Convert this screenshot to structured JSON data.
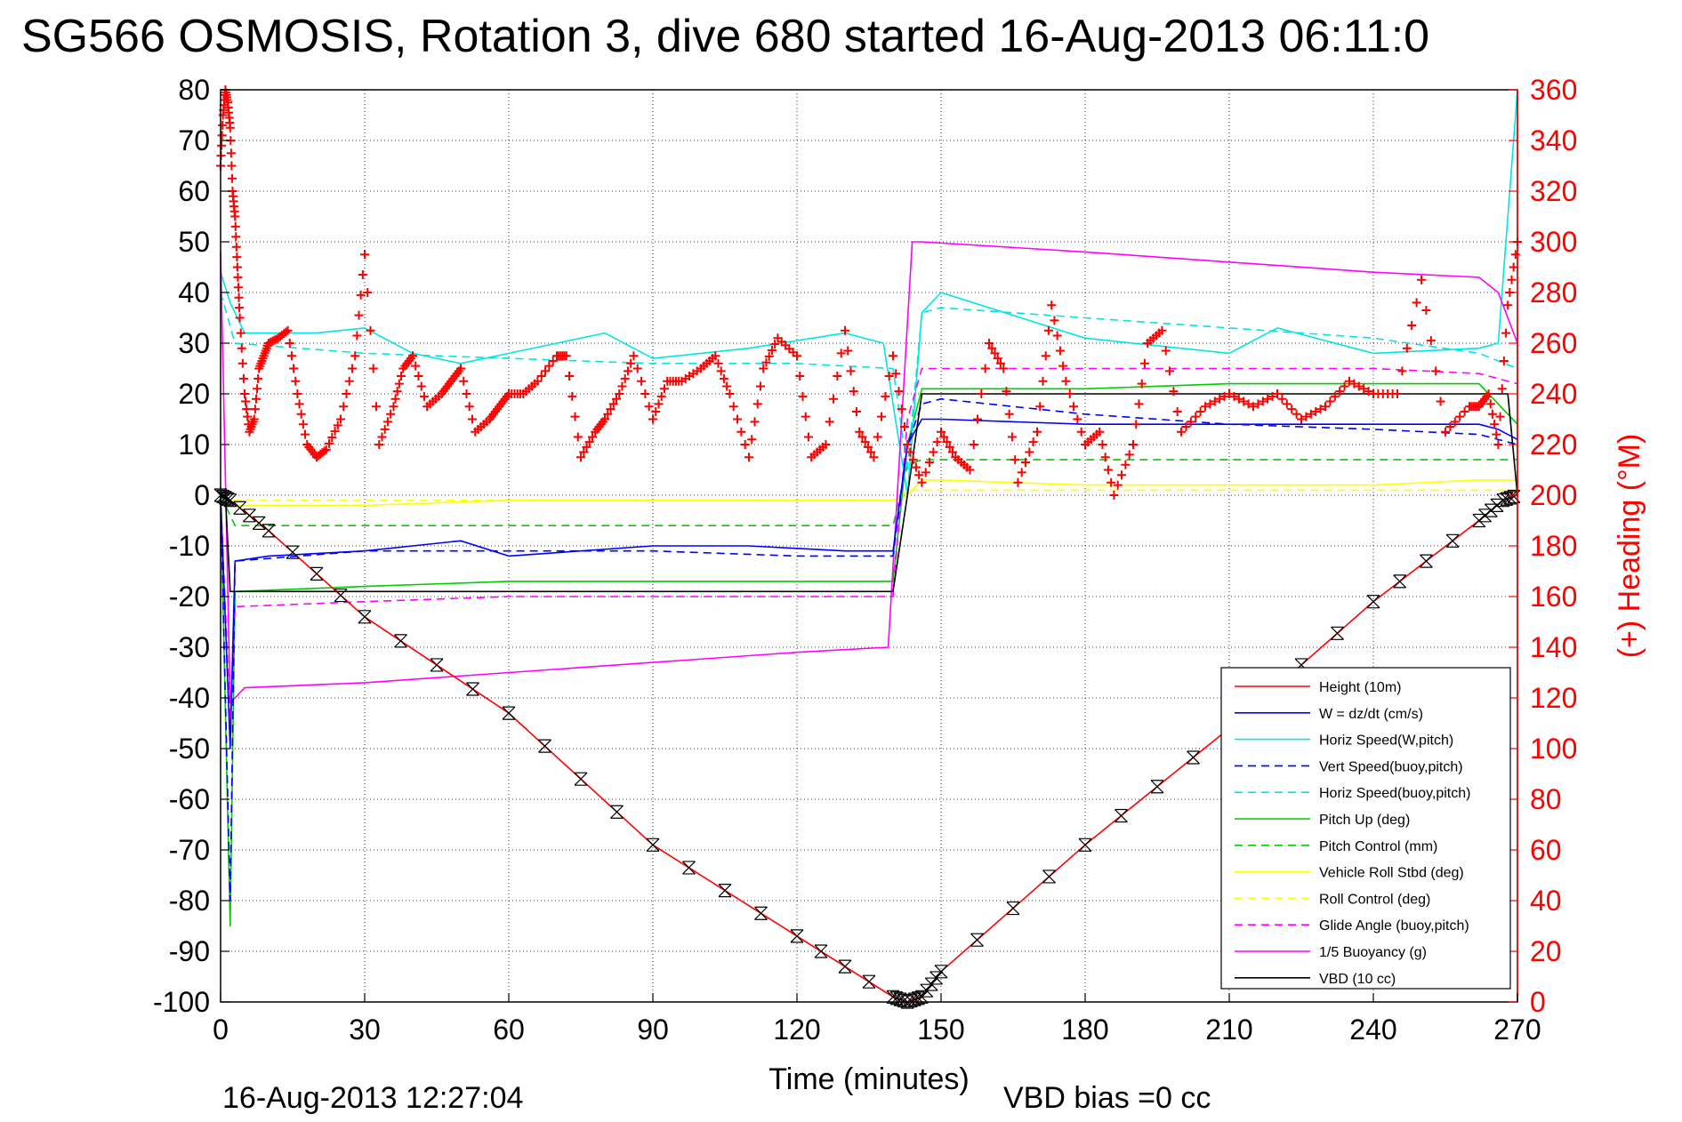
{
  "chart_data": {
    "type": "line",
    "title": "SG566 OSMOSIS, Rotation 3, dive 680 started 16-Aug-2013 06:11:0",
    "xlabel": "Time (minutes)",
    "ylabel": "",
    "y2label": "(+) Heading (°M)",
    "xlim": [
      0,
      270
    ],
    "ylim": [
      -100,
      80
    ],
    "y2lim": [
      0,
      360
    ],
    "xticks": [
      "0",
      "30",
      "60",
      "90",
      "120",
      "150",
      "180",
      "210",
      "240",
      "270"
    ],
    "yticks": [
      "80",
      "70",
      "60",
      "50",
      "40",
      "30",
      "20",
      "10",
      "0",
      "-10",
      "-20",
      "-30",
      "-40",
      "-50",
      "-60",
      "-70",
      "-80",
      "-90",
      "-100"
    ],
    "y2ticks": [
      "360",
      "340",
      "320",
      "300",
      "280",
      "260",
      "240",
      "220",
      "200",
      "180",
      "160",
      "140",
      "120",
      "100",
      "80",
      "60",
      "40",
      "20",
      "0"
    ],
    "grid": true,
    "legend_position": "bottom-right",
    "footer_date": "16-Aug-2013 12:27:04",
    "footer_bias": "VBD bias =0 cc",
    "colors": {
      "height": "#ff0000",
      "w": "#0000ff",
      "horiz": "#00e5e5",
      "pitch": "#00cc00",
      "roll": "#ffff00",
      "glide": "#ff00ff",
      "vbd": "#000000",
      "heading": "#ff0000"
    },
    "series": [
      {
        "name": "Height (10m)",
        "color": "#ff0000",
        "dash": false,
        "x": [
          0,
          2,
          10,
          30,
          60,
          90,
          120,
          140,
          143,
          146,
          150,
          180,
          210,
          240,
          262,
          267,
          270
        ],
        "y": [
          0,
          -1,
          -7,
          -24,
          -43,
          -69,
          -87,
          -99,
          -100,
          -99,
          -94,
          -69,
          -46,
          -21,
          -5,
          -1,
          0
        ]
      },
      {
        "name": "W = dz/dt (cm/s)",
        "color": "#0000ff",
        "dash": false,
        "x": [
          0,
          2,
          3,
          10,
          30,
          50,
          60,
          90,
          110,
          130,
          140,
          143,
          146,
          150,
          180,
          210,
          240,
          262,
          266,
          270
        ],
        "y": [
          0,
          -50,
          -13,
          -12,
          -11,
          -9,
          -12,
          -10,
          -10,
          -11,
          -11,
          10,
          15,
          15,
          14,
          14,
          14,
          14,
          13,
          11
        ]
      },
      {
        "name": "Horiz Speed(W,pitch)",
        "color": "#00e5e5",
        "dash": false,
        "x": [
          0,
          2,
          5,
          20,
          30,
          40,
          50,
          60,
          70,
          80,
          90,
          110,
          130,
          138,
          143,
          146,
          150,
          180,
          210,
          220,
          240,
          262,
          266,
          270
        ],
        "y": [
          44,
          38,
          32,
          32,
          33,
          28,
          26,
          28,
          30,
          32,
          27,
          29,
          32,
          30,
          0,
          36,
          40,
          31,
          28,
          33,
          28,
          29,
          30,
          80
        ]
      },
      {
        "name": "Vert Speed(buoy,pitch)",
        "color": "#0000ff",
        "dash": true,
        "x": [
          0,
          2,
          3,
          30,
          60,
          90,
          120,
          140,
          143,
          146,
          150,
          180,
          210,
          240,
          262,
          270
        ],
        "y": [
          0,
          -80,
          -13,
          -11,
          -11,
          -11,
          -12,
          -12,
          10,
          18,
          19,
          16,
          14,
          13,
          12,
          10
        ]
      },
      {
        "name": "Horiz Speed(buoy,pitch)",
        "color": "#00e5e5",
        "dash": true,
        "x": [
          0,
          3,
          30,
          60,
          90,
          120,
          140,
          143,
          146,
          150,
          180,
          210,
          240,
          262,
          270
        ],
        "y": [
          40,
          30,
          28,
          27,
          26,
          26,
          25,
          5,
          36,
          37,
          35,
          33,
          31,
          28,
          25
        ]
      },
      {
        "name": "Pitch Up (deg)",
        "color": "#00cc00",
        "dash": false,
        "x": [
          0,
          2,
          3,
          30,
          60,
          90,
          120,
          140,
          143,
          146,
          150,
          180,
          210,
          240,
          262,
          270
        ],
        "y": [
          0,
          -85,
          -19,
          -18,
          -17,
          -17,
          -17,
          -17,
          10,
          21,
          21,
          21,
          22,
          22,
          22,
          14
        ]
      },
      {
        "name": "Pitch Control (mm)",
        "color": "#00cc00",
        "dash": true,
        "x": [
          0,
          3,
          30,
          60,
          90,
          120,
          140,
          143,
          146,
          150,
          180,
          210,
          240,
          262,
          270
        ],
        "y": [
          0,
          -6,
          -6,
          -6,
          -6,
          -6,
          -6,
          6,
          7,
          7,
          7,
          7,
          7,
          7,
          7
        ]
      },
      {
        "name": "Vehicle Roll Stbd (deg)",
        "color": "#ffff00",
        "dash": false,
        "x": [
          0,
          3,
          30,
          60,
          90,
          120,
          140,
          143,
          146,
          150,
          180,
          210,
          240,
          262,
          270
        ],
        "y": [
          0,
          -2,
          -2,
          -1,
          -1,
          -1,
          -1,
          0,
          3,
          3,
          2,
          2,
          2,
          3,
          3
        ]
      },
      {
        "name": "Roll Control (deg)",
        "color": "#ffff00",
        "dash": true,
        "x": [
          0,
          3,
          30,
          60,
          90,
          120,
          140,
          143,
          146,
          150,
          180,
          210,
          240,
          262,
          270
        ],
        "y": [
          0,
          -1,
          -1,
          -1,
          -1,
          -1,
          -1,
          1,
          1,
          1,
          1,
          1,
          1,
          1,
          1
        ]
      },
      {
        "name": "Glide Angle (buoy,pitch)",
        "color": "#ff00ff",
        "dash": true,
        "x": [
          0,
          2,
          3,
          30,
          60,
          90,
          120,
          140,
          143,
          146,
          150,
          180,
          210,
          240,
          262,
          270
        ],
        "y": [
          0,
          -45,
          -22,
          -21,
          -20,
          -20,
          -20,
          -20,
          15,
          25,
          25,
          25,
          25,
          25,
          24,
          22
        ]
      },
      {
        "name": "1/5 Buoyancy (g)",
        "color": "#ff00ff",
        "dash": false,
        "x": [
          0,
          2,
          5,
          30,
          60,
          90,
          120,
          139,
          144,
          146,
          180,
          210,
          240,
          262,
          266,
          270
        ],
        "y": [
          48,
          -41,
          -38,
          -37,
          -35,
          -33,
          -31,
          -30,
          50,
          50,
          48,
          46,
          44,
          43,
          40,
          30
        ]
      },
      {
        "name": "VBD (10 cc)",
        "color": "#000000",
        "dash": false,
        "x": [
          0,
          1,
          2,
          3,
          140,
          143,
          146,
          268,
          269,
          270
        ],
        "y": [
          0,
          0,
          -19,
          -19,
          -19,
          0,
          20,
          20,
          10,
          0
        ]
      }
    ],
    "heading": {
      "name": "(+) Heading (°M)",
      "color": "#ff0000",
      "marker": "+",
      "x": [
        0,
        0.5,
        1,
        1.5,
        2,
        2.5,
        3,
        3.5,
        4,
        5,
        6,
        7,
        8,
        9,
        10,
        12,
        14,
        16,
        18,
        20,
        22,
        25,
        28,
        30,
        33,
        36,
        38,
        40,
        43,
        46,
        48,
        50,
        53,
        56,
        58,
        60,
        63,
        66,
        70,
        72,
        75,
        78,
        80,
        83,
        86,
        90,
        93,
        96,
        100,
        103,
        106,
        110,
        113,
        116,
        120,
        123,
        126,
        130,
        133,
        136,
        140,
        143,
        146,
        150,
        153,
        156,
        160,
        163,
        166,
        170,
        173,
        176,
        180,
        183,
        186,
        190,
        193,
        196,
        200,
        205,
        210,
        215,
        220,
        225,
        230,
        235,
        240,
        245,
        250,
        255,
        260,
        262,
        264,
        266,
        268,
        270
      ],
      "y": [
        330,
        350,
        360,
        355,
        345,
        320,
        310,
        290,
        270,
        240,
        225,
        230,
        250,
        255,
        260,
        262,
        265,
        240,
        220,
        215,
        218,
        230,
        255,
        295,
        220,
        235,
        250,
        255,
        235,
        240,
        245,
        250,
        225,
        230,
        235,
        240,
        240,
        245,
        255,
        255,
        215,
        225,
        230,
        240,
        255,
        230,
        245,
        245,
        250,
        255,
        240,
        215,
        250,
        262,
        255,
        215,
        220,
        265,
        225,
        215,
        255,
        220,
        205,
        225,
        215,
        210,
        260,
        250,
        205,
        225,
        275,
        245,
        220,
        225,
        200,
        220,
        260,
        265,
        225,
        235,
        240,
        235,
        240,
        230,
        235,
        245,
        240,
        240,
        285,
        225,
        235,
        235,
        240,
        220,
        275,
        300
      ]
    }
  }
}
